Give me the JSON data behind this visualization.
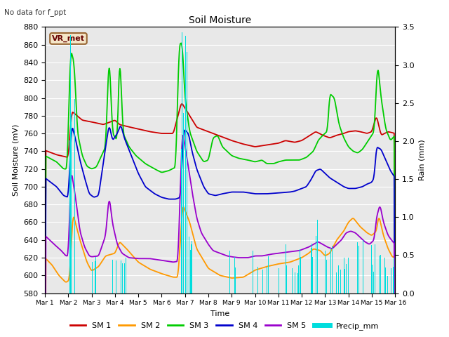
{
  "title": "Soil Moisture",
  "top_left_text": "No data for f_ppt",
  "annotation_box_text": "VR_met",
  "xlabel": "Time",
  "ylabel_left": "Soil Moisture (mV)",
  "ylabel_right": "Rain (mm)",
  "ylim_left": [
    580,
    880
  ],
  "ylim_right": [
    0.0,
    3.5
  ],
  "x_tick_labels": [
    "Mar 1",
    "Mar 2",
    "Mar 3",
    "Mar 4",
    "Mar 5",
    "Mar 6",
    "Mar 7",
    "Mar 8",
    "Mar 9",
    "Mar 10",
    "Mar 11",
    "Mar 12",
    "Mar 13",
    "Mar 14",
    "Mar 15",
    "Mar 16"
  ],
  "colors": {
    "SM1": "#cc0000",
    "SM2": "#ff9900",
    "SM3": "#00cc00",
    "SM4": "#0000cc",
    "SM5": "#9900cc",
    "precip": "#00dddd",
    "background": "#e8e8e8",
    "fig_bg": "#ffffff",
    "grid": "#ffffff"
  },
  "legend_labels": [
    "SM 1",
    "SM 2",
    "SM 3",
    "SM 4",
    "SM 5",
    "Precip_mm"
  ]
}
